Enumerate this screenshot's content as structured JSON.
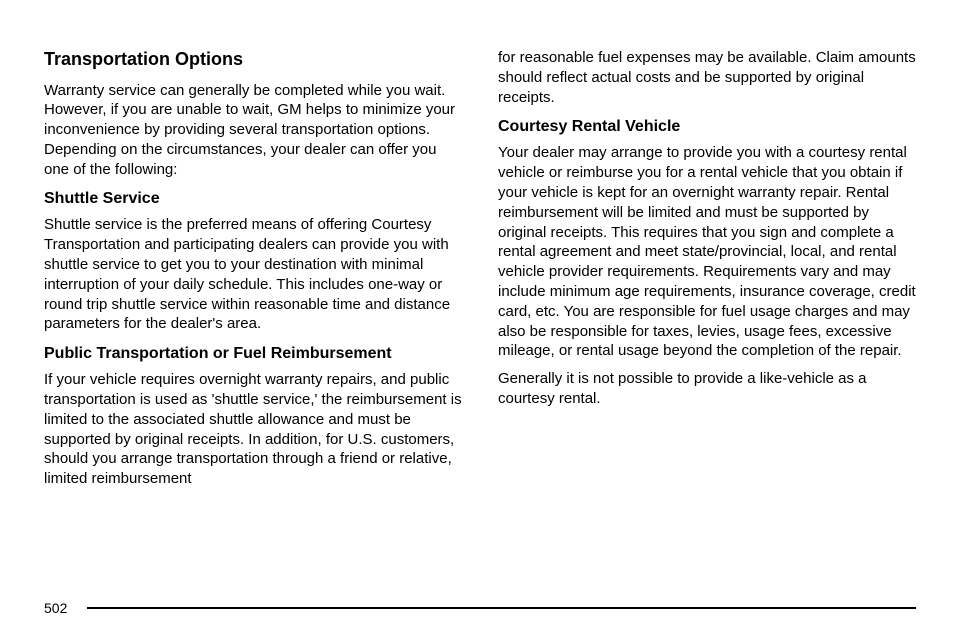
{
  "left": {
    "h2": "Transportation Options",
    "p1": "Warranty service can generally be completed while you wait. However, if you are unable to wait, GM helps to minimize your inconvenience by providing several transportation options. Depending on the circumstances, your dealer can offer you one of the following:",
    "h3a": "Shuttle Service",
    "p2": "Shuttle service is the preferred means of offering Courtesy Transportation and participating dealers can provide you with shuttle service to get you to your destination with minimal interruption of your daily schedule. This includes one-way or round trip shuttle service within reasonable time and distance parameters for the dealer's area.",
    "h3b": "Public Transportation or Fuel Reimbursement",
    "p3": "If your vehicle requires overnight warranty repairs, and public transportation is used as 'shuttle service,' the reimbursement is limited to the associated shuttle allowance and must be supported by original receipts. In addition, for U.S. customers, should you arrange transportation through a friend or relative, limited reimbursement"
  },
  "right": {
    "p1": "for reasonable fuel expenses may be available. Claim amounts should reflect actual costs and be supported by original receipts.",
    "h3a": "Courtesy Rental Vehicle",
    "p2": "Your dealer may arrange to provide you with a courtesy rental vehicle or reimburse you for a rental vehicle that you obtain if your vehicle is kept for an overnight warranty repair. Rental reimbursement will be limited and must be supported by original receipts. This requires that you sign and complete a rental agreement and meet state/provincial, local, and rental vehicle provider requirements. Requirements vary and may include minimum age requirements, insurance coverage, credit card, etc. You are responsible for fuel usage charges and may also be responsible for taxes, levies, usage fees, excessive mileage, or rental usage beyond the completion of the repair.",
    "p3": "Generally it is not possible to provide a like-vehicle as a courtesy rental."
  },
  "pageNumber": "502"
}
